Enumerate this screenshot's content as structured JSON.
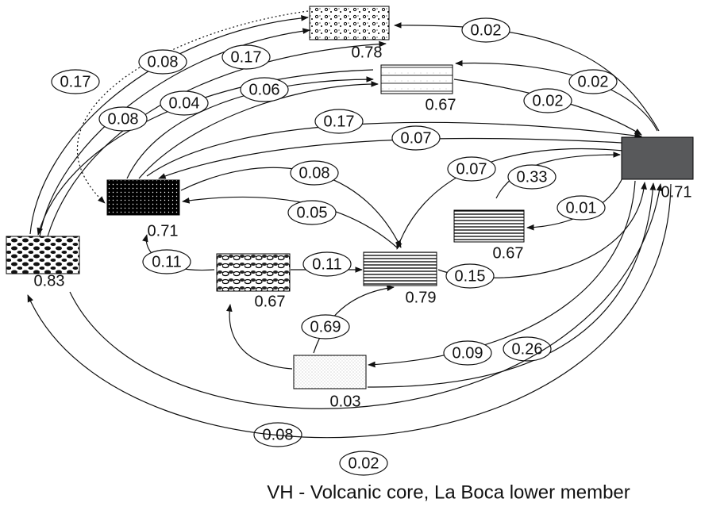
{
  "nodes": [
    {
      "label": "0.78"
    },
    {
      "label": "0.67"
    },
    {
      "label": "0.71"
    },
    {
      "label": "0.71"
    },
    {
      "label": "0.67"
    },
    {
      "label": "0.79"
    },
    {
      "label": "0.67"
    },
    {
      "label": "0.83"
    },
    {
      "label": "0.03"
    }
  ],
  "edges": [
    {
      "label": "0.02"
    },
    {
      "label": "0.02"
    },
    {
      "label": "0.02"
    },
    {
      "label": "0.17"
    },
    {
      "label": "0.07"
    },
    {
      "label": "0.17"
    },
    {
      "label": "0.08"
    },
    {
      "label": "0.17"
    },
    {
      "label": "0.08"
    },
    {
      "label": "0.04"
    },
    {
      "label": "0.06"
    },
    {
      "label": "0.08"
    },
    {
      "label": "0.05"
    },
    {
      "label": "0.07"
    },
    {
      "label": "0.33"
    },
    {
      "label": "0.01"
    },
    {
      "label": "0.15"
    },
    {
      "label": "0.11"
    },
    {
      "label": "0.11"
    },
    {
      "label": "0.69"
    },
    {
      "label": "0.09"
    },
    {
      "label": "0.26"
    },
    {
      "label": "0.08"
    },
    {
      "label": "0.02"
    }
  ],
  "caption": "VH - Volcanic core, La Boca lower member"
}
